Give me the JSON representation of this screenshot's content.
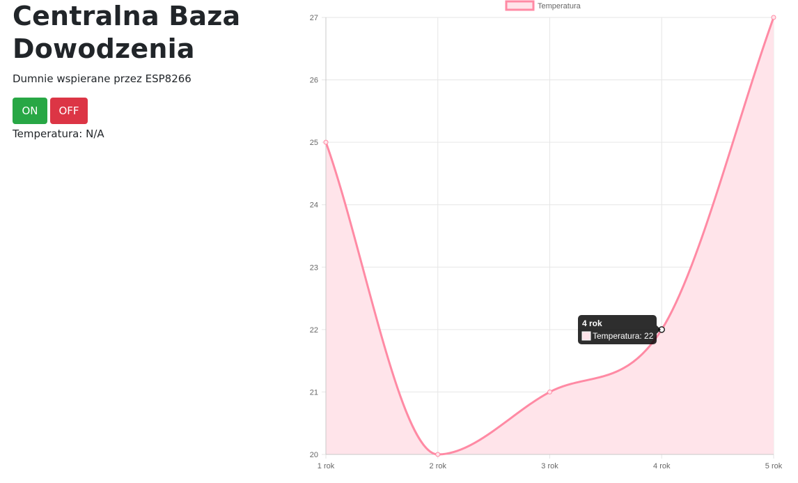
{
  "page": {
    "title": "Centralna Baza Dowodzenia",
    "subtitle": "Dumnie wspierane przez ESP8266",
    "on_label": "ON",
    "off_label": "OFF",
    "temperature_label": "Temperatura: N/A"
  },
  "colors": {
    "on_button": "#28a745",
    "off_button": "#dc3545",
    "line": "#ff8aa4",
    "fill": "#ffe4ea",
    "grid": "#e6e6e6"
  },
  "chart_data": {
    "type": "line",
    "categories": [
      "1 rok",
      "2 rok",
      "3 rok",
      "4 rok",
      "5 rok"
    ],
    "series": [
      {
        "name": "Temperatura",
        "values": [
          25,
          20,
          21,
          22,
          27
        ]
      }
    ],
    "ylim": [
      20,
      27
    ],
    "yticks": [
      20,
      21,
      22,
      23,
      24,
      25,
      26,
      27
    ],
    "grid": true,
    "fill": true,
    "legend": "top-center",
    "tooltip": {
      "category": "4 rok",
      "text": "Temperatura: 22"
    }
  }
}
